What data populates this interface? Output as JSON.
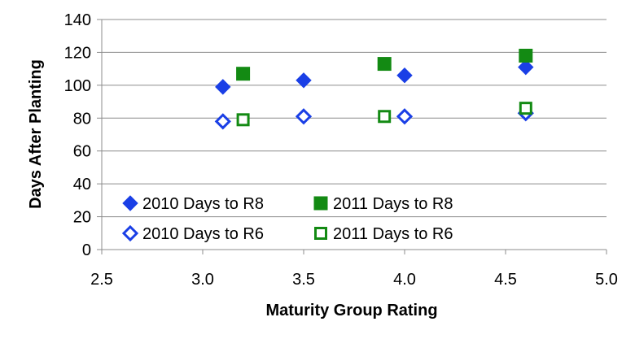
{
  "chart_data": {
    "type": "scatter",
    "title": "",
    "xlabel": "Maturity Group Rating",
    "ylabel": "Days After Planting",
    "xlim": [
      2.5,
      5.0
    ],
    "ylim": [
      0,
      140
    ],
    "x_ticks": [
      2.5,
      3.0,
      3.5,
      4.0,
      4.5,
      5.0
    ],
    "x_tick_labels": [
      "2.5",
      "3.0",
      "3.5",
      "4.0",
      "4.5",
      "5.0"
    ],
    "y_ticks": [
      0,
      20,
      40,
      60,
      80,
      100,
      120,
      140
    ],
    "y_tick_labels": [
      "0",
      "20",
      "40",
      "60",
      "80",
      "100",
      "120",
      "140"
    ],
    "grid": "horizontal",
    "legend_position": "bottom-left",
    "series": [
      {
        "name": "2010 Days to R8",
        "marker": "diamond",
        "filled": true,
        "color": "#1a3fe6",
        "points": [
          [
            3.1,
            99
          ],
          [
            3.5,
            103
          ],
          [
            4.0,
            106
          ],
          [
            4.6,
            111
          ]
        ]
      },
      {
        "name": "2011 Days to R8",
        "marker": "square",
        "filled": true,
        "color": "#138a13",
        "points": [
          [
            3.2,
            107
          ],
          [
            3.9,
            113
          ],
          [
            4.6,
            118
          ]
        ]
      },
      {
        "name": "2010 Days to R6",
        "marker": "diamond",
        "filled": false,
        "color": "#1a3fe6",
        "points": [
          [
            3.1,
            78
          ],
          [
            3.5,
            81
          ],
          [
            4.0,
            81
          ],
          [
            4.6,
            83
          ]
        ]
      },
      {
        "name": "2011 Days to R6",
        "marker": "square",
        "filled": false,
        "color": "#138a13",
        "points": [
          [
            3.2,
            79
          ],
          [
            3.9,
            81
          ],
          [
            4.6,
            86
          ]
        ]
      }
    ]
  }
}
